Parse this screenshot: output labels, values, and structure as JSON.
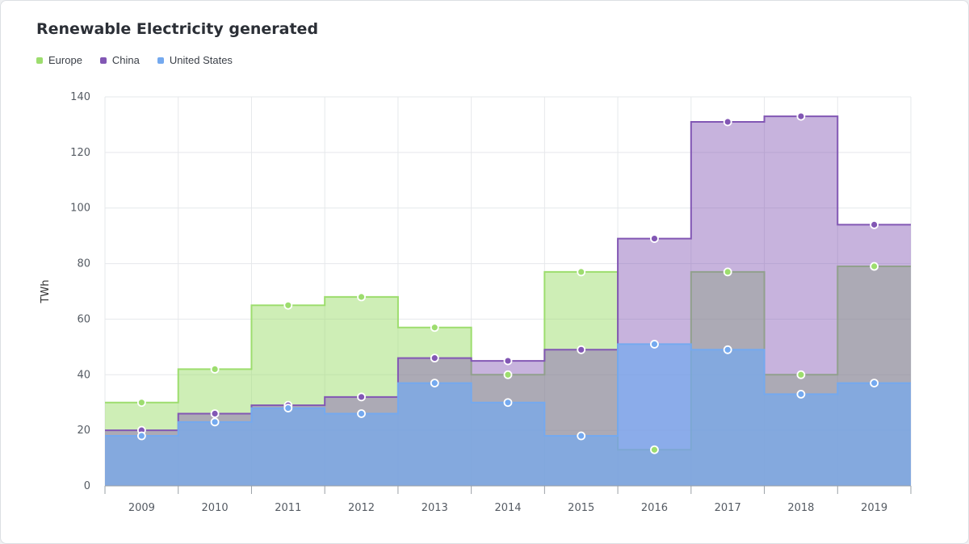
{
  "card": {
    "title": "Renewable Electricity generated"
  },
  "legend": [
    {
      "label": "Europe",
      "color": "#9ddd6e"
    },
    {
      "label": "China",
      "color": "#8257b4"
    },
    {
      "label": "United States",
      "color": "#74a9ef"
    }
  ],
  "chart_data": {
    "type": "area",
    "title": "Renewable Electricity generated",
    "xlabel": "",
    "ylabel": "TWh",
    "ylim": [
      0,
      140
    ],
    "yticks": [
      0,
      20,
      40,
      60,
      80,
      100,
      120,
      140
    ],
    "grid": true,
    "legend_position": "top-left",
    "step": true,
    "categories": [
      "2009",
      "2010",
      "2011",
      "2012",
      "2013",
      "2014",
      "2015",
      "2016",
      "2017",
      "2018",
      "2019"
    ],
    "series": [
      {
        "name": "Europe",
        "color": "#9ddd6e",
        "values": [
          30,
          42,
          65,
          68,
          57,
          40,
          77,
          13,
          77,
          40,
          79
        ]
      },
      {
        "name": "China",
        "color": "#8257b4",
        "values": [
          20,
          26,
          29,
          32,
          46,
          45,
          49,
          89,
          131,
          133,
          94
        ]
      },
      {
        "name": "United States",
        "color": "#74a9ef",
        "values": [
          18,
          23,
          28,
          26,
          37,
          30,
          18,
          51,
          49,
          33,
          37
        ]
      }
    ]
  }
}
